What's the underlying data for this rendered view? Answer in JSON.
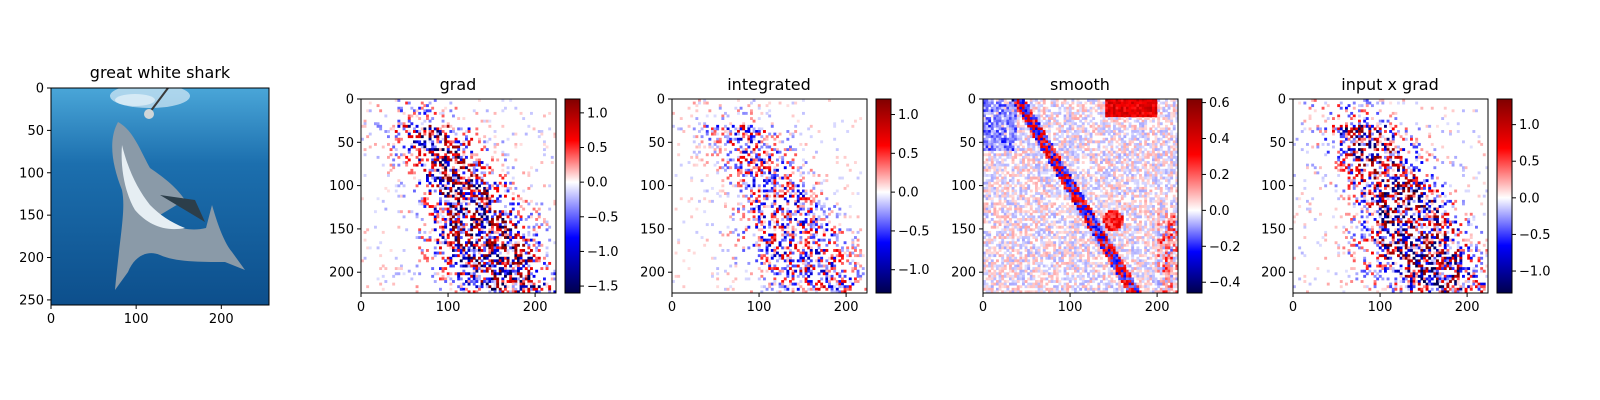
{
  "chart_data": [
    {
      "type": "image",
      "title": "great white shark",
      "xlim": [
        0,
        256
      ],
      "ylim": [
        256,
        0
      ],
      "xticks": [
        0,
        100,
        200
      ],
      "yticks": [
        0,
        50,
        100,
        150,
        200,
        250
      ],
      "colorbar": null,
      "colors": {
        "water_top": "#4aa6d8",
        "water_mid": "#1c6fae",
        "water_bottom": "#0d4f8c",
        "shark": "#8a9aa8",
        "belly": "#e6eef3"
      }
    },
    {
      "type": "heatmap",
      "title": "grad",
      "cmap": "seismic",
      "xlim": [
        0,
        224
      ],
      "ylim": [
        224,
        0
      ],
      "xticks": [
        0,
        100,
        200
      ],
      "yticks": [
        0,
        50,
        100,
        150,
        200
      ],
      "colorbar": {
        "min": -1.6,
        "max": 1.2,
        "ticks": [
          1.0,
          0.5,
          0.0,
          -0.5,
          -1.0,
          -1.5
        ],
        "tick_labels": [
          "1.0",
          "0.5",
          "0.0",
          "−0.5",
          "−1.0",
          "−1.5"
        ]
      }
    },
    {
      "type": "heatmap",
      "title": "integrated",
      "cmap": "seismic",
      "xlim": [
        0,
        224
      ],
      "ylim": [
        224,
        0
      ],
      "xticks": [
        0,
        100,
        200
      ],
      "yticks": [
        0,
        50,
        100,
        150,
        200
      ],
      "colorbar": {
        "min": -1.3,
        "max": 1.2,
        "ticks": [
          1.0,
          0.5,
          0.0,
          -0.5,
          -1.0
        ],
        "tick_labels": [
          "1.0",
          "0.5",
          "0.0",
          "−0.5",
          "−1.0"
        ]
      }
    },
    {
      "type": "heatmap",
      "title": "smooth",
      "cmap": "seismic",
      "xlim": [
        0,
        224
      ],
      "ylim": [
        224,
        0
      ],
      "xticks": [
        0,
        100,
        200
      ],
      "yticks": [
        0,
        50,
        100,
        150,
        200
      ],
      "colorbar": {
        "min": -0.46,
        "max": 0.62,
        "ticks": [
          0.6,
          0.4,
          0.2,
          0.0,
          -0.2,
          -0.4
        ],
        "tick_labels": [
          "0.6",
          "0.4",
          "0.2",
          "0.0",
          "−0.2",
          "−0.4"
        ]
      }
    },
    {
      "type": "heatmap",
      "title": "input x grad",
      "cmap": "seismic",
      "xlim": [
        0,
        224
      ],
      "ylim": [
        224,
        0
      ],
      "xticks": [
        0,
        100,
        200
      ],
      "yticks": [
        0,
        50,
        100,
        150,
        200
      ],
      "colorbar": {
        "min": -1.3,
        "max": 1.35,
        "ticks": [
          1.0,
          0.5,
          0.0,
          -0.5,
          -1.0
        ],
        "tick_labels": [
          "1.0",
          "0.5",
          "0.0",
          "−0.5",
          "−1.0"
        ]
      }
    }
  ]
}
